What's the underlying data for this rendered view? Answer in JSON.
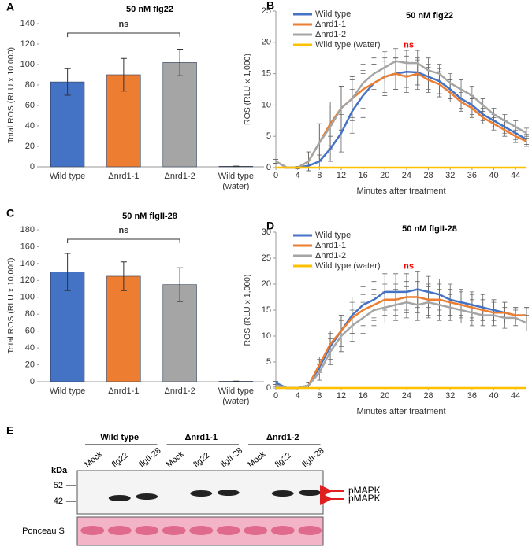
{
  "chart_data": [
    {
      "type": "bar",
      "panel": "A",
      "title": "50 nM flg22",
      "ylabel": "Total ROS (RLU x 10,000)",
      "categories": [
        "Wild type",
        "Δnrd1-1",
        "Δnrd1-2",
        "Wild type (water)"
      ],
      "values": [
        83,
        90,
        102,
        0.5
      ],
      "errors": [
        13,
        16,
        13,
        0.2
      ],
      "colors": [
        "#4472c4",
        "#ed7d31",
        "#a5a5a5",
        "#ffc000"
      ],
      "ylim": [
        0,
        140
      ],
      "yticks": [
        0,
        20,
        40,
        60,
        80,
        100,
        120,
        140
      ],
      "annotation": "ns"
    },
    {
      "type": "line",
      "panel": "B",
      "title": "50 nM flg22",
      "ylabel": "ROS (RLU x 1,000)",
      "xlabel": "Minutes after treatment",
      "x": [
        0,
        2,
        4,
        6,
        8,
        10,
        12,
        14,
        16,
        18,
        20,
        22,
        24,
        26,
        28,
        30,
        32,
        34,
        36,
        38,
        40,
        42,
        44,
        46
      ],
      "series": [
        {
          "name": "Wild type",
          "color": "#4472c4",
          "values": [
            1,
            0,
            0,
            0.3,
            1,
            3,
            5.5,
            9,
            11.5,
            13.5,
            14.5,
            15,
            15.3,
            15.2,
            14.5,
            13.8,
            12.5,
            11,
            10,
            8.5,
            7.5,
            6.5,
            5.5,
            4.5
          ],
          "errors": [
            0.3,
            0.1,
            0.1,
            0.3,
            1,
            2,
            3,
            3.5,
            3.5,
            3,
            2.5,
            2.5,
            2.5,
            2,
            2,
            2,
            1.5,
            1.5,
            1.5,
            1,
            1,
            1,
            1,
            0.8
          ]
        },
        {
          "name": "Δnrd1-1",
          "color": "#ed7d31",
          "values": [
            1,
            0,
            0,
            1,
            4,
            7,
            9.5,
            11,
            12.5,
            13.5,
            14.5,
            15,
            14.5,
            15,
            14,
            13.3,
            12,
            10.5,
            9.5,
            8,
            7,
            6,
            5,
            4.2
          ],
          "errors": [
            0.3,
            0.1,
            0.2,
            1.5,
            3,
            3.5,
            3.5,
            3.5,
            3,
            3,
            3,
            2.5,
            2.5,
            2.5,
            2,
            2,
            1.5,
            1.5,
            1.5,
            1,
            1,
            1,
            1,
            0.8
          ]
        },
        {
          "name": "Δnrd1-2",
          "color": "#a5a5a5",
          "values": [
            1,
            0,
            0,
            1,
            4,
            6.5,
            9.5,
            11,
            13.5,
            15,
            16,
            17,
            16.7,
            16.7,
            15.5,
            15,
            13.5,
            12.5,
            11.5,
            10,
            8.5,
            7.5,
            6.5,
            5.5
          ],
          "errors": [
            0.3,
            0.1,
            0.2,
            1.5,
            3,
            3.5,
            3.5,
            3,
            3,
            2.5,
            2.5,
            2,
            2,
            2,
            2,
            1.5,
            1.5,
            1.5,
            1.5,
            1,
            1,
            1,
            1,
            0.8
          ]
        },
        {
          "name": "Wild type (water)",
          "color": "#ffc000",
          "values": [
            0,
            0,
            0,
            0,
            0,
            0,
            0,
            0,
            0,
            0,
            0,
            0,
            0,
            0,
            0,
            0,
            0,
            0,
            0,
            0,
            0,
            0,
            0,
            0
          ]
        }
      ],
      "xlim": [
        0,
        46
      ],
      "xticks": [
        0,
        4,
        8,
        12,
        16,
        20,
        24,
        28,
        32,
        36,
        40,
        44
      ],
      "ylim": [
        0,
        25
      ],
      "yticks": [
        0,
        5,
        10,
        15,
        20,
        25
      ],
      "annotation": "ns",
      "annotation_color": "#ff0000"
    },
    {
      "type": "bar",
      "panel": "C",
      "title": "50 nM flgII-28",
      "ylabel": "Total ROS (RLU x 10,000)",
      "categories": [
        "Wild type",
        "Δnrd1-1",
        "Δnrd1-2",
        "Wild type (water)"
      ],
      "values": [
        130,
        125,
        115,
        0.5
      ],
      "errors": [
        22,
        17,
        20,
        0.2
      ],
      "colors": [
        "#4472c4",
        "#ed7d31",
        "#a5a5a5",
        "#ffc000"
      ],
      "ylim": [
        0,
        180
      ],
      "yticks": [
        0,
        20,
        40,
        60,
        80,
        100,
        120,
        140,
        160,
        180
      ],
      "annotation": "ns"
    },
    {
      "type": "line",
      "panel": "D",
      "title": "50 nM flgII-28",
      "ylabel": "ROS (RLU x 1,000)",
      "xlabel": "Minutes after treatment",
      "x": [
        0,
        2,
        4,
        6,
        8,
        10,
        12,
        14,
        16,
        18,
        20,
        22,
        24,
        26,
        28,
        30,
        32,
        34,
        36,
        38,
        40,
        42,
        44,
        46
      ],
      "series": [
        {
          "name": "Wild type",
          "color": "#4472c4",
          "values": [
            1,
            0,
            0,
            0.5,
            4,
            8,
            11,
            14,
            16,
            17,
            18.5,
            18.5,
            18.5,
            19,
            18.5,
            18,
            17,
            16.5,
            16,
            15.5,
            15,
            14.5,
            14,
            14
          ],
          "errors": [
            0.3,
            0.1,
            0.1,
            0.5,
            1.5,
            2.5,
            3,
            3.5,
            3.5,
            3.5,
            3.5,
            3.5,
            3.5,
            3.5,
            3,
            3,
            3,
            2.5,
            2.5,
            2.5,
            2,
            2,
            1.5,
            1.5
          ]
        },
        {
          "name": "Δnrd1-1",
          "color": "#ed7d31",
          "values": [
            0.5,
            0,
            0,
            0.5,
            4.5,
            8.5,
            11,
            13.5,
            15,
            16,
            17,
            17,
            17.5,
            17.5,
            17,
            17,
            16.5,
            16,
            15.5,
            15,
            14.5,
            14.5,
            14,
            14
          ],
          "errors": [
            0.2,
            0.1,
            0.1,
            0.5,
            1.5,
            2.5,
            3,
            3,
            3,
            3,
            3,
            3,
            3,
            3,
            3,
            3,
            2.5,
            2.5,
            2.5,
            2,
            2,
            2,
            1.5,
            1.5
          ]
        },
        {
          "name": "Δnrd1-2",
          "color": "#a5a5a5",
          "values": [
            0.5,
            0,
            0,
            0.5,
            3,
            7,
            10,
            12,
            13.5,
            15,
            15.5,
            16,
            16.5,
            16,
            16.5,
            16,
            15.5,
            15,
            14.5,
            14,
            14,
            13.5,
            13.5,
            12.5
          ],
          "errors": [
            0.2,
            0.1,
            0.1,
            0.5,
            1.5,
            2.5,
            3,
            3,
            3,
            3,
            3,
            3,
            3,
            3,
            3,
            3,
            2.5,
            2.5,
            2.5,
            2,
            2,
            2,
            1.5,
            1.5
          ]
        },
        {
          "name": "Wild type (water)",
          "color": "#ffc000",
          "values": [
            0,
            0,
            0,
            0,
            0,
            0,
            0,
            0,
            0,
            0,
            0,
            0,
            0,
            0,
            0,
            0,
            0,
            0,
            0,
            0,
            0,
            0,
            0,
            0
          ]
        }
      ],
      "xlim": [
        0,
        46
      ],
      "xticks": [
        0,
        4,
        8,
        12,
        16,
        20,
        24,
        28,
        32,
        36,
        40,
        44
      ],
      "ylim": [
        0,
        30
      ],
      "yticks": [
        0,
        5,
        10,
        15,
        20,
        25,
        30
      ],
      "annotation": "ns",
      "annotation_color": "#ff0000"
    }
  ],
  "blot": {
    "panel": "E",
    "groups": [
      {
        "name": "Wild type",
        "lanes": [
          "Mock",
          "flg22",
          "flgII-28"
        ]
      },
      {
        "name": "Δnrd1-1",
        "lanes": [
          "Mock",
          "flg22",
          "flgII-28"
        ]
      },
      {
        "name": "Δnrd1-2",
        "lanes": [
          "Mock",
          "flg22",
          "flgII-28"
        ]
      }
    ],
    "kda_label": "kDa",
    "markers": [
      "52",
      "42"
    ],
    "band_labels": [
      "pMAPK",
      "pMAPK"
    ],
    "stain_label": "Ponceau S"
  }
}
